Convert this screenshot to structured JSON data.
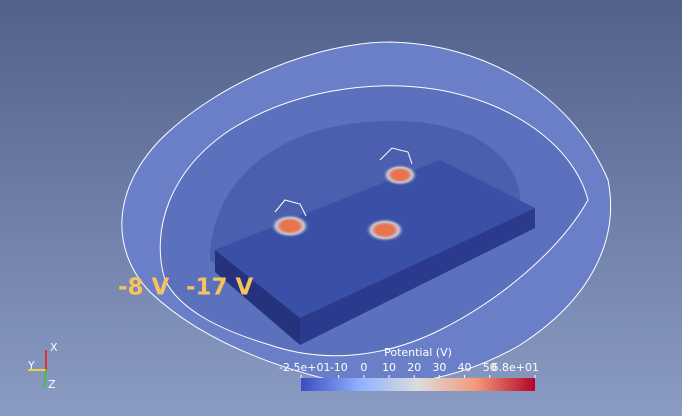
{
  "annotations": [
    "-8 V",
    "-17 V"
  ],
  "color_bar": {
    "title": "Potential (V)",
    "range": [
      -25,
      68
    ],
    "ticks": [
      {
        "value": -25,
        "label": "-2.5e+01"
      },
      -10,
      0,
      10,
      20,
      30,
      40,
      50,
      {
        "value": 68,
        "label": "6.8e+01"
      }
    ]
  },
  "axes_triad": {
    "x": "X",
    "y": "Y",
    "z": "Z"
  }
}
